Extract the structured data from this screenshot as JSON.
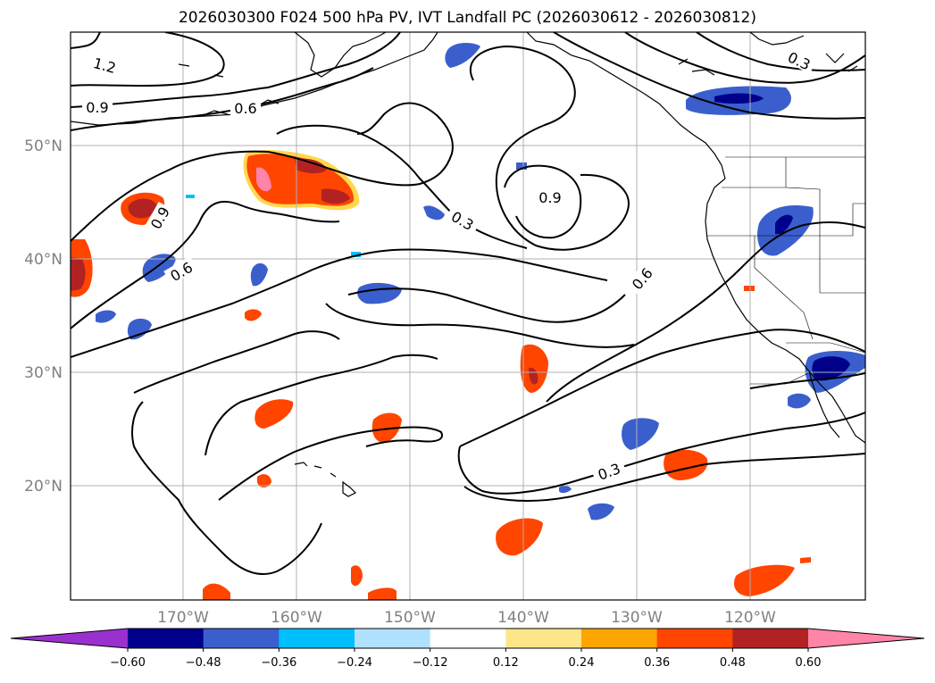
{
  "title": "2026030300 F024 500 hPa PV, IVT Landfall PC (2026030612 - 2026030812)",
  "lon_labels": [
    "170°W",
    "160°W",
    "150°W",
    "140°W",
    "130°W",
    "120°W"
  ],
  "lat_labels": [
    "50°N",
    "40°N",
    "30°N",
    "20°N"
  ],
  "contour_labels": [
    "1.2",
    "0.9",
    "0.6",
    "0.9",
    "0.6",
    "0.9",
    "0.3",
    "0.6",
    "0.3",
    "0.3"
  ],
  "colorbar": {
    "ticks": [
      "−0.60",
      "−0.48",
      "−0.36",
      "−0.24",
      "−0.12",
      "0.12",
      "0.24",
      "0.36",
      "0.48",
      "0.60"
    ],
    "colors": [
      "#9b30d0",
      "#00008b",
      "#3a5fcd",
      "#00bfff",
      "#b0e2ff",
      "#ffffff",
      "#fde68a",
      "#ffa500",
      "#ff4500",
      "#b22222",
      "#ff85a8"
    ]
  },
  "colors": {
    "contour": "#000000",
    "grid": "#b0b0b0",
    "coast": "#000000"
  }
}
